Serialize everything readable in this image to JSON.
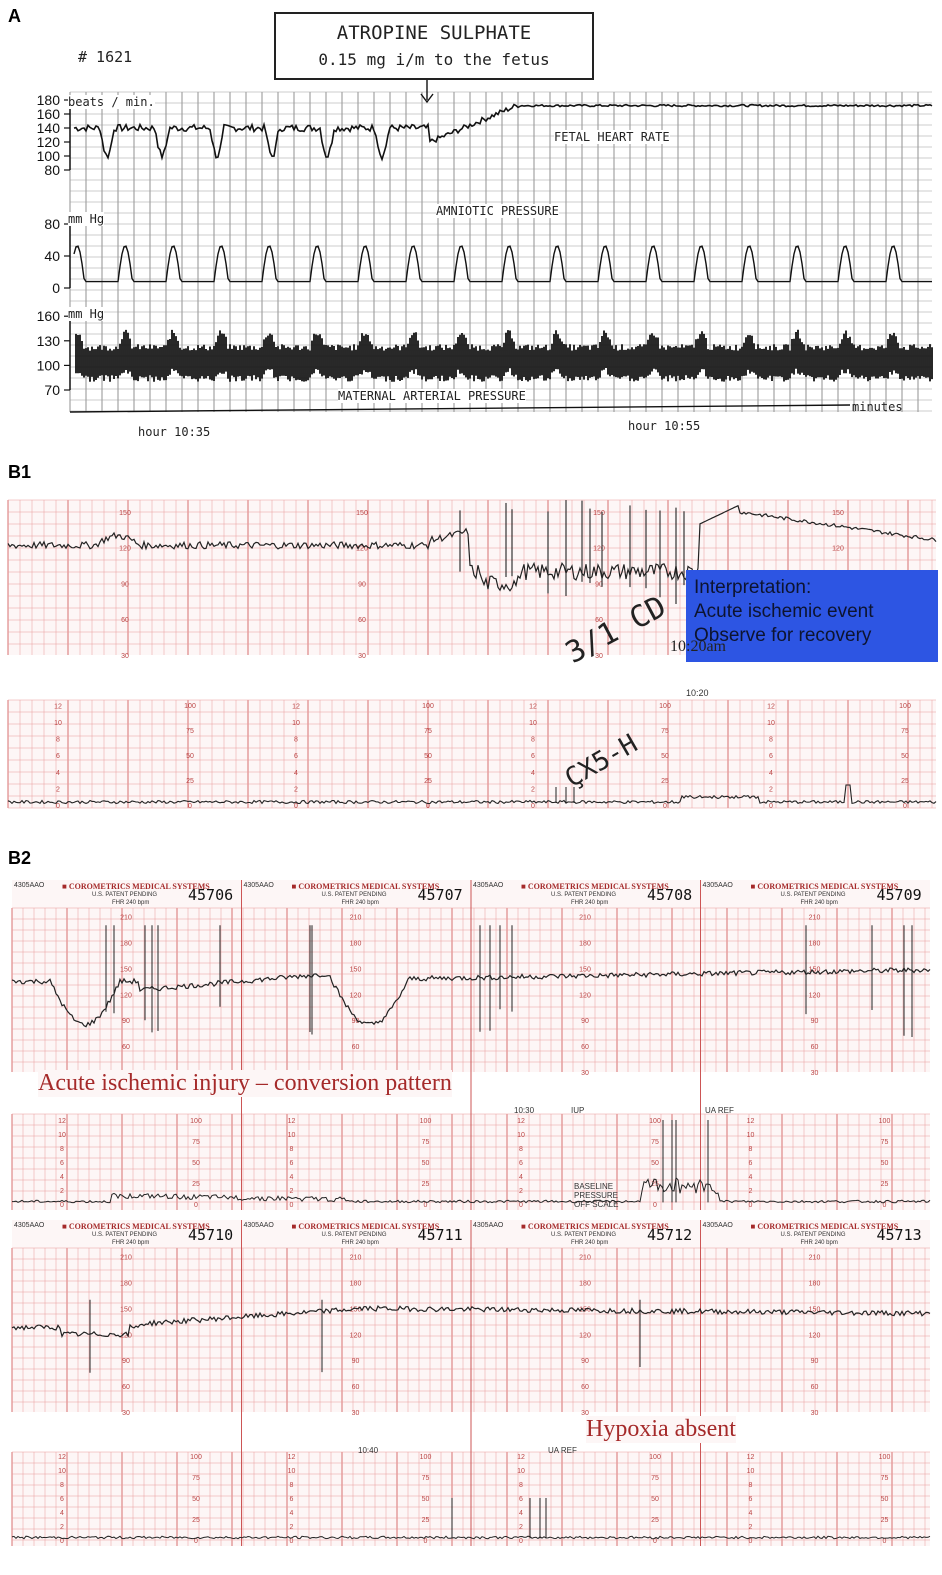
{
  "panels": {
    "a": {
      "label": "A"
    },
    "b1": {
      "label": "B1"
    },
    "b2": {
      "label": "B2"
    }
  },
  "panel_a": {
    "record_number": "# 1621",
    "drug_box": {
      "line1": "ATROPINE  SULPHATE",
      "line2": "0.15 mg i/m to the fetus"
    },
    "trace_labels": {
      "fhr": "FETAL  HEART  RATE",
      "amniotic": "AMNIOTIC  PRESSURE",
      "maternal": "MATERNAL  ARTERIAL  PRESSURE"
    },
    "units": {
      "fhr": "beats / min.",
      "amniotic": "mm Hg",
      "maternal": "mm Hg"
    },
    "time_unit": "minutes",
    "time_labels": [
      "hour  10:35",
      "hour  10:55"
    ]
  },
  "panel_b1": {
    "interpretation": {
      "line1": "Interpretation:",
      "line2": "Acute ischemic event",
      "line3": "Observe for recovery"
    },
    "time_label": "10:20am",
    "time_label2": "10:20",
    "handwriting1": "3/1 CD",
    "handwriting2": "ÇX5-H"
  },
  "panel_b2": {
    "sheet_header": "COROMETRICS MEDICAL SYSTEMS",
    "sheet_code": "4305AAO",
    "patent": "U.S. PATENT PENDING",
    "fhr_scale": "FHR 240 bpm",
    "sheet_numbers_top": [
      "45706",
      "45707",
      "45708",
      "45709"
    ],
    "sheet_numbers_bottom": [
      "45710",
      "45711",
      "45712",
      "45713"
    ],
    "annotation_top": "Acute ischemic injury – conversion pattern",
    "annotation_bottom": "Hypoxia absent",
    "time_top": "10:30",
    "iup": "IUP",
    "ua_ref": "UA REF",
    "baseline_note": "BASELINE PRESSURE OFF SCALE",
    "time_bottom": "10:40",
    "ua_ref_bottom": "UA REF"
  },
  "chart_data": [
    {
      "type": "line",
      "panel": "A",
      "series": [
        {
          "y_axis_ticks": [
            80,
            100,
            120,
            140,
            160,
            180
          ]
        },
        {
          "y_axis_ticks": [
            0,
            40,
            80
          ]
        },
        {
          "y_axis_ticks": [
            70,
            100,
            130,
            160
          ]
        }
      ],
      "x_time_labels": [
        "10:35",
        "10:55"
      ],
      "xlabel": "minutes"
    },
    {
      "type": "line",
      "panel": "B1",
      "fhr_ticks": [
        30,
        60,
        90,
        120,
        150
      ],
      "ua_ticks": [
        0,
        25,
        50,
        75,
        100
      ],
      "ua_kpa_ticks": [
        0,
        2,
        4,
        6,
        8,
        10,
        12
      ]
    },
    {
      "type": "line",
      "panel": "B2",
      "fhr_ticks": [
        30,
        60,
        90,
        120,
        150,
        180,
        210
      ],
      "ua_ticks": [
        0,
        25,
        50,
        75,
        100
      ],
      "ua_kpa_ticks": [
        0,
        2,
        4,
        6,
        8,
        10,
        12
      ]
    }
  ],
  "colors": {
    "grid_red": "#e89a9a",
    "grid_red_dark": "#d87070",
    "strip_bg": "#fdf6f6",
    "interp_box": "#2d55e3",
    "annotation_red": "#a52a2a"
  }
}
